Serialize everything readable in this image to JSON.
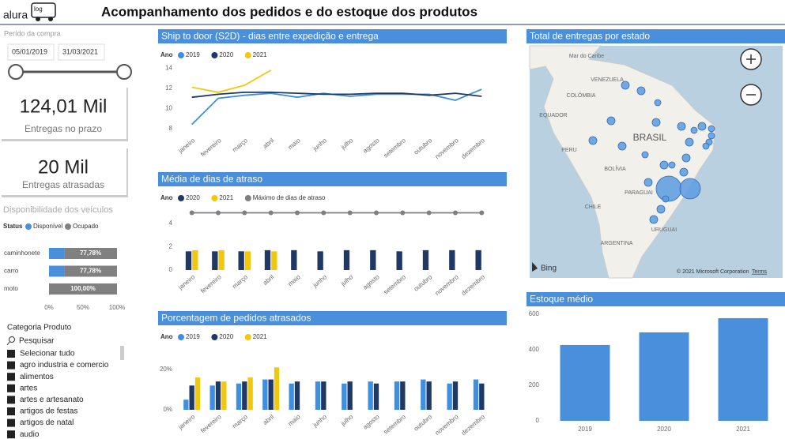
{
  "header": {
    "logo": "alura",
    "logo_badge": "log",
    "title": "Acompanhamento dos pedidos e do estoque dos produtos"
  },
  "date_slicer": {
    "label": "Perído da compra",
    "start": "05/01/2019",
    "end": "31/03/2021"
  },
  "cards": [
    {
      "value": "124,01 Mil",
      "label": "Entregas no prazo"
    },
    {
      "value": "20 Mil",
      "label": "Entregas atrasadas"
    }
  ],
  "product_slicer": {
    "title": "Categoria Produto",
    "search": "Pesquisar",
    "items": [
      "Selecionar tudo",
      "agro industria e comercio",
      "alimentos",
      "artes",
      "artes e artesanato",
      "artigos de festas",
      "artigos de natal",
      "audio"
    ]
  },
  "map": {
    "title": "Total de entregas por estado",
    "provider": "Bing",
    "attribution": "© 2021 Microsoft Corporation",
    "terms": "Terms",
    "labels": [
      "Mar do Caribe",
      "VENEZUELA",
      "COLÔMBIA",
      "EQUADOR",
      "PERU",
      "BRASIL",
      "BOLÍVIA",
      "PARAGUAI",
      "CHILE",
      "ARGENTINA",
      "URUGUAI"
    ]
  },
  "chart_data": [
    {
      "type": "line",
      "title": "Ship to door (S2D) - dias entre expedição e entrega",
      "legend_title": "Ano",
      "categories": [
        "janeiro",
        "fevereiro",
        "março",
        "abril",
        "maio",
        "junho",
        "julho",
        "agosto",
        "setembro",
        "outubro",
        "novembro",
        "dezembro"
      ],
      "series": [
        {
          "name": "2019",
          "color": "#3f8fe0",
          "values": [
            8.4,
            11.0,
            11.3,
            11.5,
            11.1,
            11.5,
            11.2,
            11.4,
            11.4,
            11.4,
            10.8,
            11.9
          ]
        },
        {
          "name": "2020",
          "color": "#1f3864",
          "values": [
            11.1,
            11.4,
            11.6,
            11.6,
            11.5,
            11.4,
            11.4,
            11.5,
            11.5,
            11.3,
            11.5,
            11.2
          ]
        },
        {
          "name": "2021",
          "color": "#f2c80f",
          "values": [
            12.1,
            11.6,
            12.3,
            13.8,
            null,
            null,
            null,
            null,
            null,
            null,
            null,
            null
          ]
        }
      ],
      "ylim": [
        7.5,
        14.5
      ],
      "yticks": [
        8,
        10,
        12,
        14
      ],
      "grid": false
    },
    {
      "type": "bar",
      "title": "Média de dias de atraso",
      "legend_title": "Ano",
      "categories": [
        "janeiro",
        "fevereiro",
        "março",
        "abril",
        "maio",
        "junho",
        "julho",
        "agosto",
        "setembro",
        "outubro",
        "novembro",
        "dezembro"
      ],
      "series": [
        {
          "name": "2020",
          "color": "#1f3864",
          "values": [
            1.6,
            1.6,
            1.6,
            1.7,
            1.7,
            1.6,
            1.7,
            1.7,
            1.6,
            1.7,
            1.7,
            1.7
          ]
        },
        {
          "name": "2021",
          "color": "#f2c80f",
          "values": [
            1.7,
            1.7,
            1.6,
            1.6,
            null,
            null,
            null,
            null,
            null,
            null,
            null,
            null
          ]
        },
        {
          "name": "Máximo de dias de atraso",
          "color": "#7f7f7f",
          "type": "line",
          "values": [
            4.9,
            4.9,
            4.9,
            4.9,
            4.9,
            4.9,
            4.9,
            4.9,
            4.9,
            4.9,
            4.9,
            4.9
          ]
        }
      ],
      "ylim": [
        0,
        5
      ],
      "yticks": [
        0,
        2,
        4
      ],
      "grid": false
    },
    {
      "type": "bar",
      "title": "Porcentagem de pedidos atrasados",
      "legend_title": "Ano",
      "categories": [
        "janeiro",
        "fevereiro",
        "março",
        "abril",
        "maio",
        "junho",
        "julho",
        "agosto",
        "setembro",
        "outubro",
        "novembro",
        "dezembro"
      ],
      "series": [
        {
          "name": "2019",
          "color": "#3f8fe0",
          "values": [
            5,
            12,
            13,
            15,
            13,
            14,
            13,
            14,
            14,
            15,
            13,
            15
          ]
        },
        {
          "name": "2020",
          "color": "#1f3864",
          "values": [
            12,
            14,
            14,
            15,
            14,
            14,
            14,
            13,
            14,
            14,
            14,
            13
          ]
        },
        {
          "name": "2021",
          "color": "#f2c80f",
          "values": [
            16,
            14,
            16,
            21,
            null,
            null,
            null,
            null,
            null,
            null,
            null,
            null
          ]
        }
      ],
      "ylim": [
        0,
        25
      ],
      "yticks": [
        {
          "value": 0,
          "label": "0%"
        },
        {
          "value": 20,
          "label": "20%"
        }
      ],
      "grid": false
    },
    {
      "type": "bar",
      "title": "Estoque médio",
      "categories": [
        "2019",
        "2020",
        "2021"
      ],
      "values": [
        427,
        498,
        578
      ],
      "color": "#4a8fdc",
      "ylim": [
        0,
        600
      ],
      "yticks": [
        0,
        200,
        400,
        600
      ],
      "grid": false
    },
    {
      "type": "bar",
      "orientation": "horizontal",
      "stacked": true,
      "title": "Disponibilidade dos veículos",
      "legend_title": "Status",
      "categories": [
        "caminhonete",
        "carro",
        "moto"
      ],
      "series": [
        {
          "name": "Disponível",
          "color": "#4a8fdc",
          "values": [
            22.22,
            22.22,
            0
          ]
        },
        {
          "name": "Ocupado",
          "color": "#808080",
          "values": [
            77.78,
            77.78,
            100
          ],
          "value_labels": [
            "77,78%",
            "77,78%",
            "100,00%"
          ]
        }
      ],
      "xlim": [
        0,
        100
      ],
      "xticks": [
        {
          "value": 0,
          "label": "0%"
        },
        {
          "value": 50,
          "label": "50%"
        },
        {
          "value": 100,
          "label": "100%"
        }
      ]
    }
  ]
}
